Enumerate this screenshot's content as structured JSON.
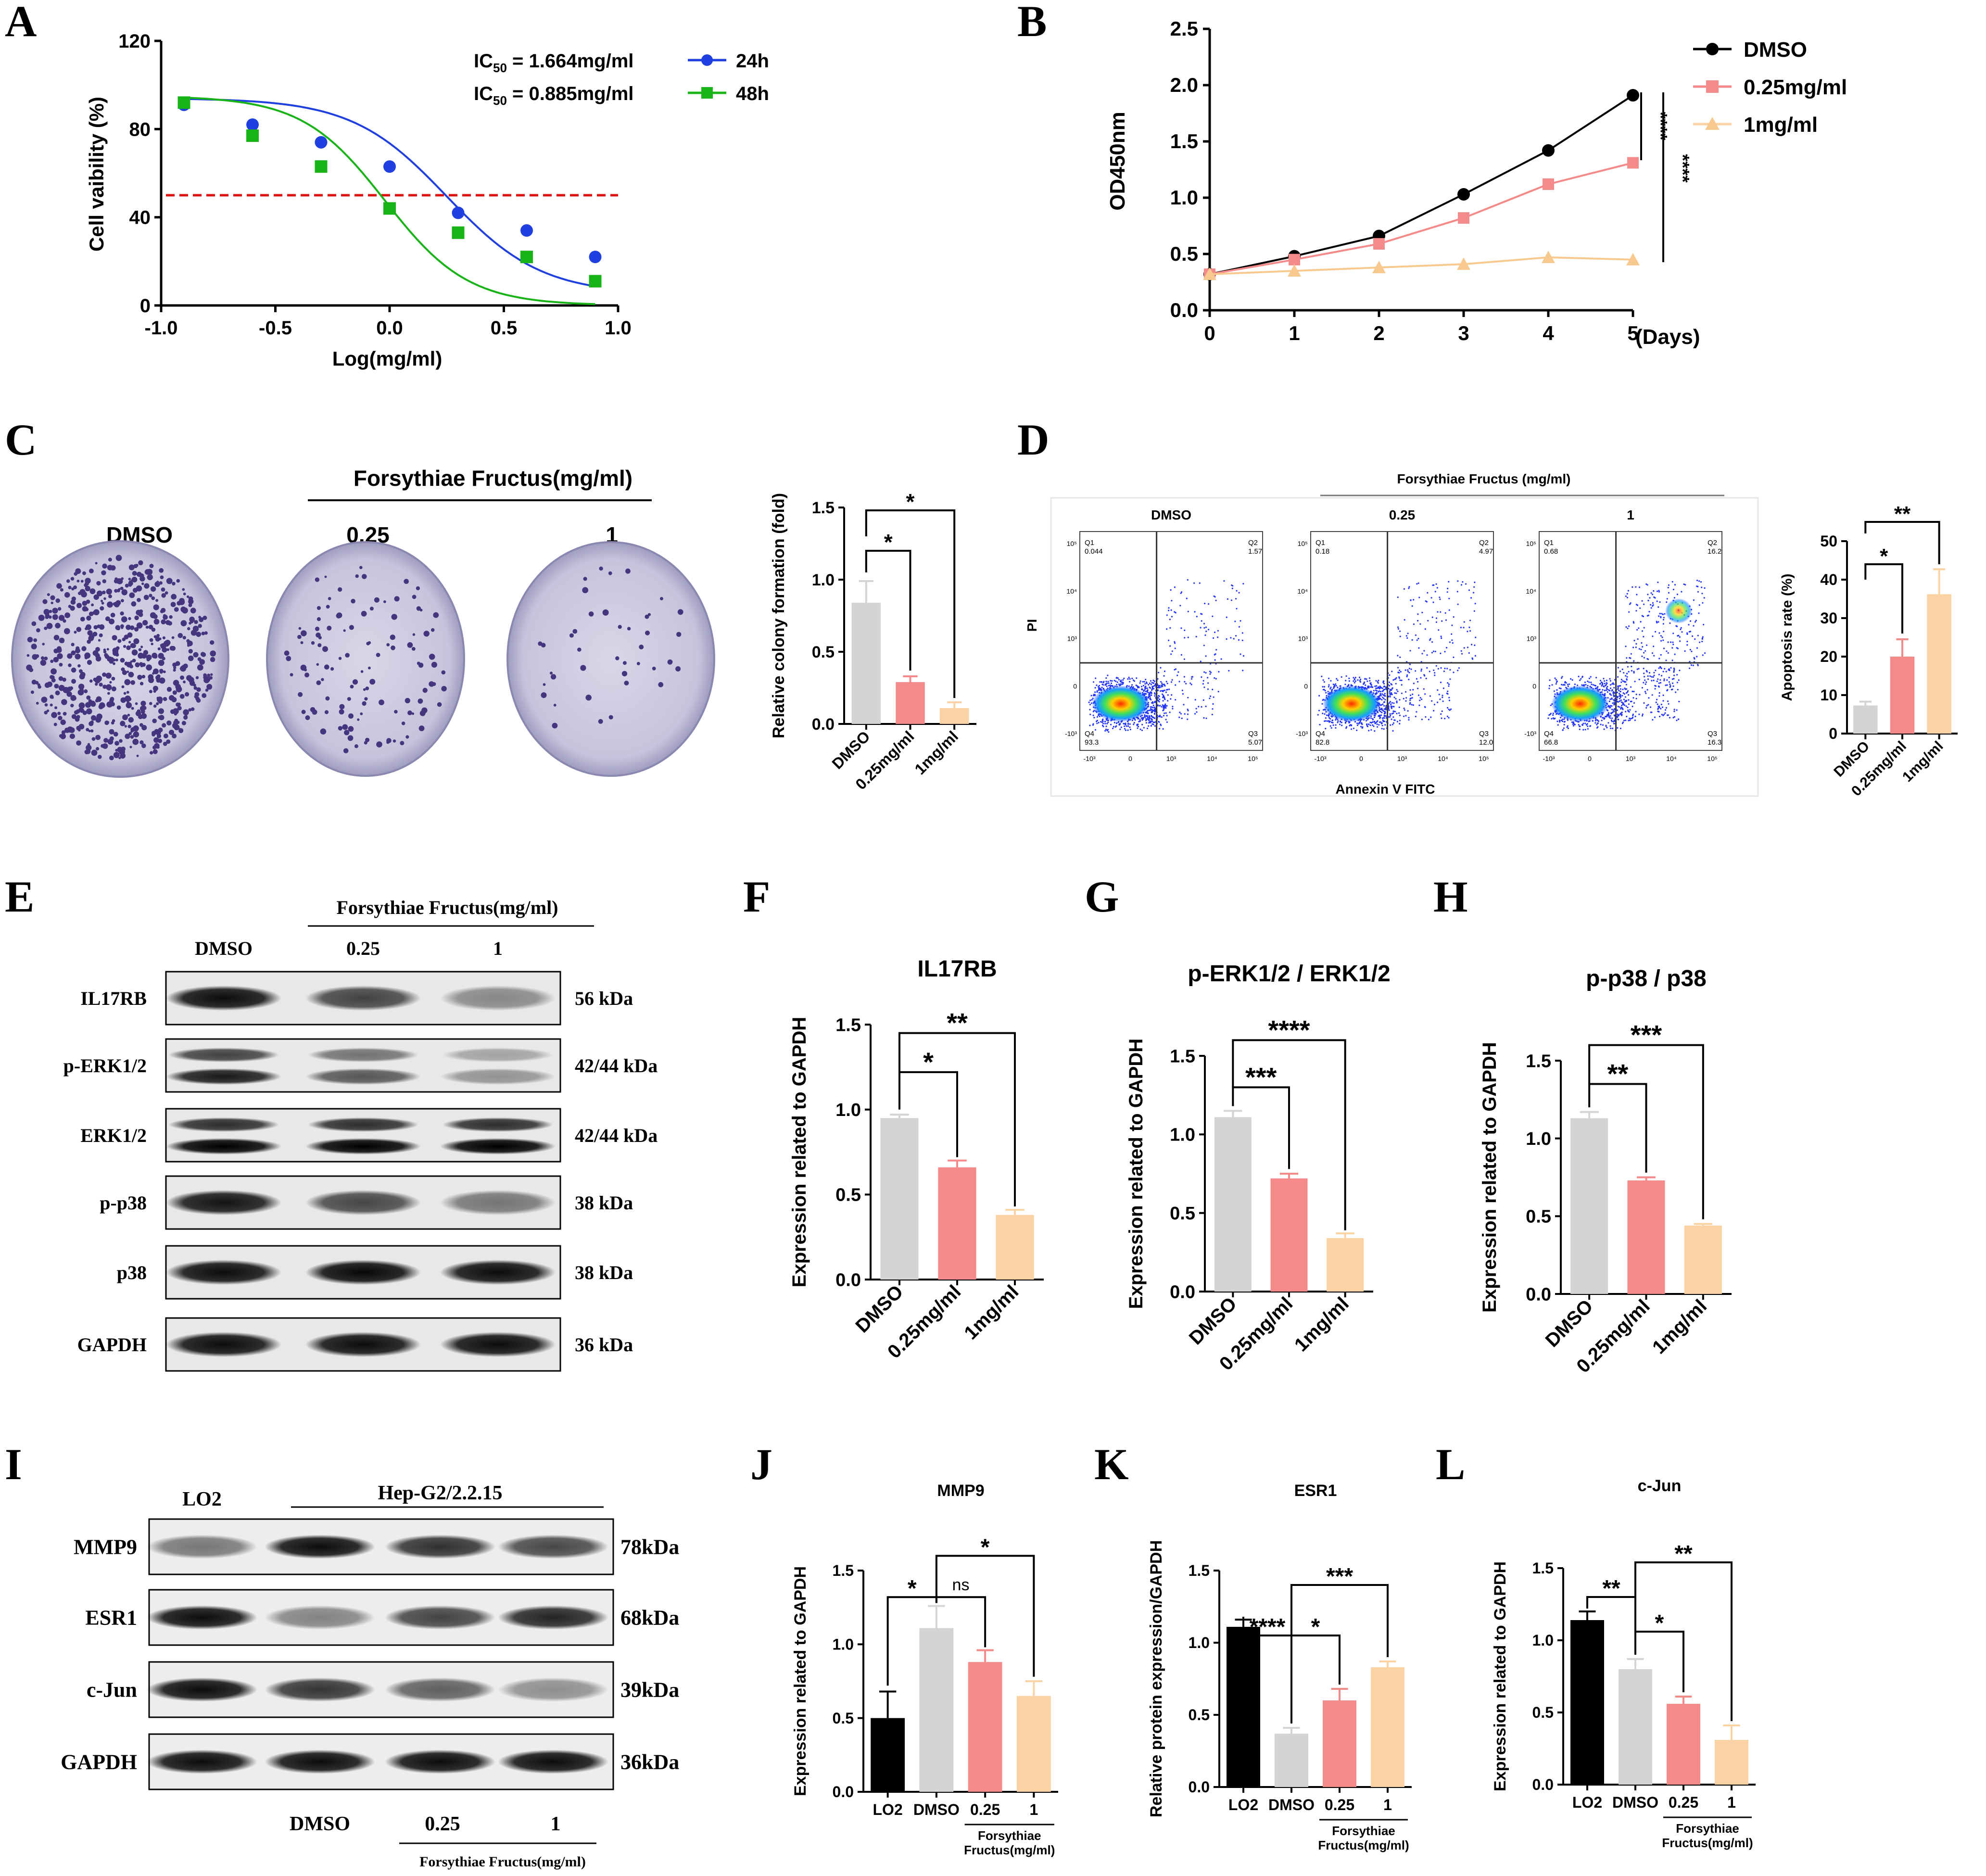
{
  "colors": {
    "blue": "#1f3fe0",
    "green": "#17b317",
    "red": "#e01010",
    "black": "#000000",
    "pink": "#f58a8a",
    "peach": "#fad2a3",
    "grey": "#d4d4d4",
    "plate": "#c9c8dd",
    "colony": "#45347e"
  },
  "panels": {
    "A": "A",
    "B": "B",
    "C": "C",
    "D": "D",
    "E": "E",
    "F": "F",
    "G": "G",
    "H": "H",
    "I": "I",
    "J": "J",
    "K": "K",
    "L": "L"
  },
  "panelA": {
    "chart_data": {
      "type": "scatter",
      "xlabel": "Log(mg/ml)",
      "ylabel": "Cell vaibility (%)",
      "xlim": [
        -1.0,
        1.0
      ],
      "ylim": [
        0,
        120
      ],
      "xticks": [
        "-1.0",
        "-0.5",
        "0.0",
        "0.5",
        "1.0"
      ],
      "yticks": [
        "0",
        "40",
        "80",
        "120"
      ],
      "threshold": 50,
      "series": [
        {
          "name": "24h",
          "ic50": "IC50 = 1.664mg/ml",
          "marker": "circle",
          "x": [
            -0.9,
            -0.6,
            -0.3,
            0.0,
            0.3,
            0.6,
            0.9
          ],
          "y": [
            91,
            82,
            74,
            63,
            42,
            34,
            22
          ]
        },
        {
          "name": "48h",
          "ic50": "IC50 = 0.885mg/ml",
          "marker": "square",
          "x": [
            -0.9,
            -0.6,
            -0.3,
            0.0,
            0.3,
            0.6,
            0.9
          ],
          "y": [
            92,
            77,
            63,
            44,
            33,
            22,
            11
          ]
        }
      ]
    },
    "ic50_24_pre": "IC",
    "ic50_24_sub": "50",
    "ic50_24_val": " = 1.664mg/ml",
    "ic50_48_pre": "IC",
    "ic50_48_sub": "50",
    "ic50_48_val": " = 0.885mg/ml"
  },
  "panelB": {
    "chart_data": {
      "type": "line",
      "ylabel": "OD450nm",
      "xunit": "(Days)",
      "x": [
        0,
        1,
        2,
        3,
        4,
        5
      ],
      "ylim": [
        0,
        2.5
      ],
      "yticks": [
        "0.0",
        "0.5",
        "1.0",
        "1.5",
        "2.0",
        "2.5"
      ],
      "xticks": [
        "0",
        "1",
        "2",
        "3",
        "4",
        "5"
      ],
      "series": [
        {
          "name": "DMSO",
          "marker": "circle",
          "values": [
            0.32,
            0.48,
            0.66,
            1.03,
            1.42,
            1.91
          ]
        },
        {
          "name": "0.25mg/ml",
          "marker": "square",
          "values": [
            0.32,
            0.45,
            0.59,
            0.82,
            1.12,
            1.31
          ]
        },
        {
          "name": "1mg/ml",
          "marker": "triangle",
          "values": [
            0.32,
            0.35,
            0.38,
            0.41,
            0.47,
            0.45
          ]
        }
      ],
      "annotations": [
        "****",
        "****"
      ]
    }
  },
  "panelC": {
    "header": "Forsythiae Fructus(mg/ml)",
    "plates": [
      "DMSO",
      "0.25",
      "1"
    ],
    "chart_data": {
      "type": "bar",
      "ylabel": "Relative colony formation (fold)",
      "categories": [
        "DMSO",
        "0.25mg/ml",
        "1mg/ml"
      ],
      "values": [
        0.84,
        0.29,
        0.11
      ],
      "errors": [
        0.15,
        0.04,
        0.04
      ],
      "ylim": [
        0,
        1.5
      ],
      "yticks": [
        "0.0",
        "0.5",
        "1.0",
        "1.5"
      ],
      "sig": [
        "*",
        "*"
      ]
    }
  },
  "panelD": {
    "header": "Forsythiae Fructus (mg/ml)",
    "xaxis": "Annexin V FITC",
    "yaxis": "PI",
    "plots": [
      {
        "title": "DMSO",
        "q1": "Q1",
        "q1v": "0.044",
        "q2": "Q2",
        "q2v": "1.57",
        "q3": "Q3",
        "q3v": "5.07",
        "q4": "Q4",
        "q4v": "93.3"
      },
      {
        "title": "0.25",
        "q1": "Q1",
        "q1v": "0.18",
        "q2": "Q2",
        "q2v": "4.97",
        "q3": "Q3",
        "q3v": "12.0",
        "q4": "Q4",
        "q4v": "82.8"
      },
      {
        "title": "1",
        "q1": "Q1",
        "q1v": "0.68",
        "q2": "Q2",
        "q2v": "16.2",
        "q3": "Q3",
        "q3v": "16.3",
        "q4": "Q4",
        "q4v": "66.8"
      }
    ],
    "flow_ticks": {
      "x": [
        "-10³",
        "0",
        "10³",
        "10⁴",
        "10⁵"
      ],
      "y": [
        "10⁵",
        "10⁴",
        "10³",
        "0",
        "-10³"
      ]
    },
    "chart_data": {
      "type": "bar",
      "ylabel": "Apoptosis rate (%)",
      "categories": [
        "DMSO",
        "0.25mg/ml",
        "1mg/ml"
      ],
      "values": [
        7.3,
        20.0,
        36.2
      ],
      "errors": [
        1.0,
        4.5,
        6.5
      ],
      "ylim": [
        0,
        50
      ],
      "yticks": [
        "0",
        "10",
        "20",
        "30",
        "40",
        "50"
      ],
      "sig": [
        "*",
        "**"
      ]
    }
  },
  "panelE": {
    "header": "Forsythiae Fructus(mg/ml)",
    "lanes": [
      "DMSO",
      "0.25",
      "1"
    ],
    "rows": [
      {
        "label": "IL17RB",
        "kda": "56 kDa",
        "double": false,
        "intensity": [
          0.95,
          0.72,
          0.42
        ]
      },
      {
        "label": "p-ERK1/2",
        "kda": "42/44 kDa",
        "double": true,
        "intensity": [
          0.85,
          0.6,
          0.35
        ]
      },
      {
        "label": "ERK1/2",
        "kda": "42/44 kDa",
        "double": true,
        "intensity": [
          0.95,
          0.95,
          0.95
        ]
      },
      {
        "label": "p-p38",
        "kda": "38 kDa",
        "double": false,
        "intensity": [
          0.92,
          0.7,
          0.5
        ]
      },
      {
        "label": "p38",
        "kda": "38 kDa",
        "double": false,
        "intensity": [
          0.95,
          0.97,
          0.95
        ]
      },
      {
        "label": "GAPDH",
        "kda": "36 kDa",
        "double": false,
        "intensity": [
          0.95,
          0.95,
          0.95
        ]
      }
    ]
  },
  "panelF": {
    "chart_data": {
      "type": "bar",
      "title": "IL17RB",
      "ylabel": "Expression related to GAPDH",
      "categories": [
        "DMSO",
        "0.25mg/ml",
        "1mg/ml"
      ],
      "values": [
        0.95,
        0.66,
        0.38
      ],
      "errors": [
        0.02,
        0.04,
        0.03
      ],
      "ylim": [
        0,
        1.5
      ],
      "yticks": [
        "0.0",
        "0.5",
        "1.0",
        "1.5"
      ],
      "sig": [
        "*",
        "**"
      ]
    }
  },
  "panelG": {
    "chart_data": {
      "type": "bar",
      "title": "p-ERK1/2 / ERK1/2",
      "ylabel": "Expression related to GAPDH",
      "categories": [
        "DMSO",
        "0.25mg/ml",
        "1mg/ml"
      ],
      "values": [
        1.11,
        0.72,
        0.34
      ],
      "errors": [
        0.04,
        0.03,
        0.03
      ],
      "ylim": [
        0,
        1.5
      ],
      "yticks": [
        "0.0",
        "0.5",
        "1.0",
        "1.5"
      ],
      "sig": [
        "***",
        "****"
      ]
    }
  },
  "panelH": {
    "chart_data": {
      "type": "bar",
      "title": "p-p38 / p38",
      "ylabel": "Expression related to GAPDH",
      "categories": [
        "DMSO",
        "0.25mg/ml",
        "1mg/ml"
      ],
      "values": [
        1.13,
        0.73,
        0.44
      ],
      "errors": [
        0.04,
        0.02,
        0.01
      ],
      "ylim": [
        0,
        1.5
      ],
      "yticks": [
        "0.0",
        "0.5",
        "1.0",
        "1.5"
      ],
      "sig": [
        "**",
        "***"
      ]
    }
  },
  "panelI": {
    "groups": [
      "LO2",
      "Hep-G2/2.2.15"
    ],
    "lanes_bottom": [
      "DMSO",
      "0.25",
      "1"
    ],
    "footer": "Forsythiae Fructus(mg/ml)",
    "rows": [
      {
        "label": "MMP9",
        "kda": "78kDa",
        "intensity": [
          0.5,
          0.95,
          0.8,
          0.7
        ]
      },
      {
        "label": "ESR1",
        "kda": "68kDa",
        "intensity": [
          0.95,
          0.45,
          0.72,
          0.85
        ]
      },
      {
        "label": "c-Jun",
        "kda": "39kDa",
        "intensity": [
          0.95,
          0.78,
          0.6,
          0.4
        ]
      },
      {
        "label": "GAPDH",
        "kda": "36kDa",
        "intensity": [
          0.95,
          0.95,
          0.95,
          0.95
        ]
      }
    ]
  },
  "panelJ": {
    "chart_data": {
      "type": "bar",
      "title": "MMP9",
      "ylabel": "Expression related to GAPDH",
      "categories": [
        "LO2",
        "DMSO",
        "0.25",
        "1"
      ],
      "values": [
        0.5,
        1.11,
        0.88,
        0.65
      ],
      "errors": [
        0.18,
        0.15,
        0.08,
        0.1
      ],
      "ylim": [
        0,
        1.5
      ],
      "yticks": [
        "0.0",
        "0.5",
        "1.0",
        "1.5"
      ],
      "sig": [
        "*",
        "ns",
        "*"
      ],
      "group_label_1": "Forsythiae",
      "group_label_2": "Fructus(mg/ml)"
    }
  },
  "panelK": {
    "chart_data": {
      "type": "bar",
      "title": "ESR1",
      "ylabel": "Relative protein expression/GAPDH",
      "categories": [
        "LO2",
        "DMSO",
        "0.25",
        "1"
      ],
      "values": [
        1.11,
        0.37,
        0.6,
        0.83
      ],
      "errors": [
        0.05,
        0.04,
        0.08,
        0.04
      ],
      "ylim": [
        0,
        1.5
      ],
      "yticks": [
        "0.0",
        "0.5",
        "1.0",
        "1.5"
      ],
      "sig": [
        "****",
        "*",
        "***"
      ],
      "group_label_1": "Forsythiae",
      "group_label_2": "Fructus(mg/ml)"
    }
  },
  "panelL": {
    "chart_data": {
      "type": "bar",
      "title": "c-Jun",
      "ylabel": "Expression related to GAPDH",
      "categories": [
        "LO2",
        "DMSO",
        "0.25",
        "1"
      ],
      "values": [
        1.14,
        0.8,
        0.56,
        0.31
      ],
      "errors": [
        0.06,
        0.07,
        0.05,
        0.1
      ],
      "ylim": [
        0,
        1.5
      ],
      "yticks": [
        "0.0",
        "0.5",
        "1.0",
        "1.5"
      ],
      "sig": [
        "**",
        "*",
        "**"
      ],
      "group_label_1": "Forsythiae",
      "group_label_2": "Fructus(mg/ml)"
    }
  }
}
